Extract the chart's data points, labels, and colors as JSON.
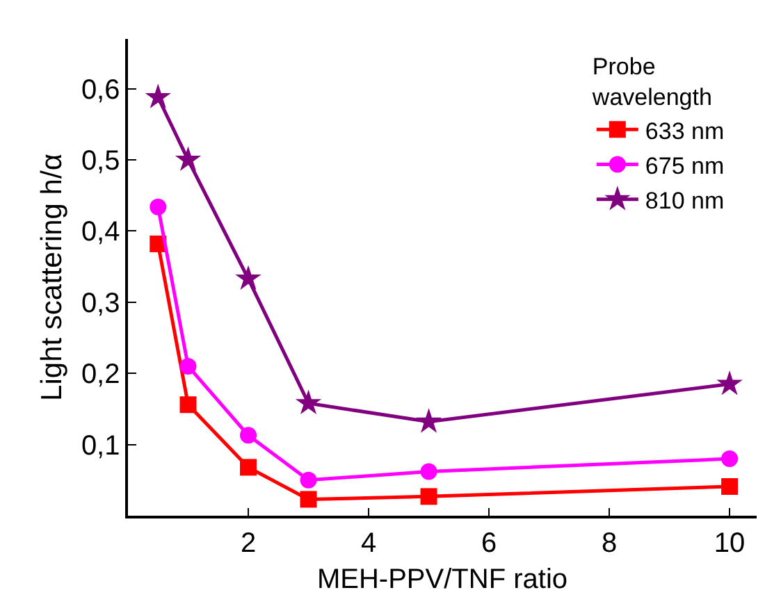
{
  "chart_data": {
    "type": "line",
    "xlabel": "MEH-PPV/TNF ratio",
    "ylabel": "Light scattering h/α",
    "legend_title": "Probe wavelength",
    "legend": "top right",
    "x": [
      0.5,
      1,
      2,
      3,
      5,
      10
    ],
    "series": [
      {
        "name": "633 nm",
        "color": "#ff0000",
        "marker": "square",
        "values": [
          0.382,
          0.156,
          0.068,
          0.023,
          0.027,
          0.041
        ]
      },
      {
        "name": "675 nm",
        "color": "#ff00ff",
        "marker": "circle",
        "values": [
          0.434,
          0.21,
          0.113,
          0.05,
          0.062,
          0.08
        ]
      },
      {
        "name": "810 nm",
        "color": "#800080",
        "marker": "star",
        "values": [
          0.588,
          0.5,
          0.333,
          0.158,
          0.132,
          0.185
        ]
      }
    ],
    "xlim": [
      0,
      10.45
    ],
    "xticks": [
      2,
      4,
      6,
      8,
      10
    ],
    "ylim": [
      0,
      0.67
    ],
    "yticks": [
      {
        "value": 0.1,
        "label": "0,1"
      },
      {
        "value": 0.2,
        "label": "0,2"
      },
      {
        "value": 0.3,
        "label": "0,3"
      },
      {
        "value": 0.4,
        "label": "0,4"
      },
      {
        "value": 0.5,
        "label": "0,5"
      },
      {
        "value": 0.6,
        "label": "0,6"
      }
    ]
  }
}
